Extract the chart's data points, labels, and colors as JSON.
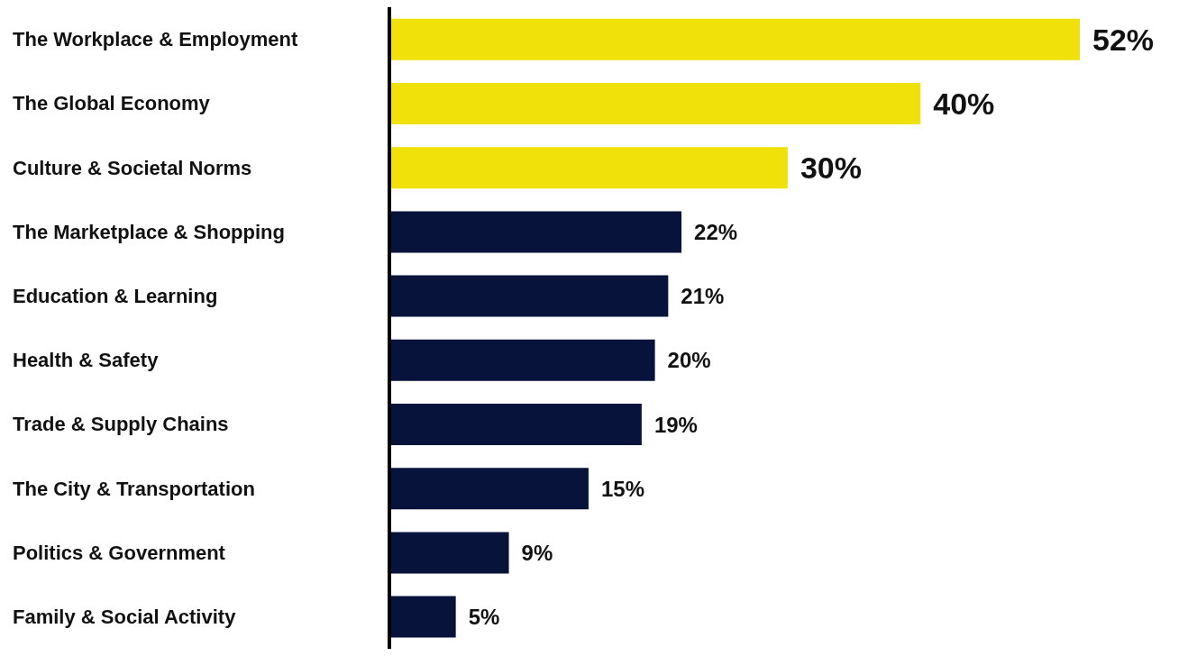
{
  "chart_data": {
    "type": "bar",
    "orientation": "horizontal",
    "categories": [
      "The Workplace & Employment",
      "The Global Economy",
      "Culture & Societal Norms",
      "The Marketplace & Shopping",
      "Education & Learning",
      "Health & Safety",
      "Trade & Supply Chains",
      "The City & Transportation",
      "Politics & Government",
      "Family & Social Activity"
    ],
    "values": [
      52,
      40,
      30,
      22,
      21,
      20,
      19,
      15,
      9,
      5
    ],
    "value_labels": [
      "52%",
      "40%",
      "30%",
      "22%",
      "21%",
      "20%",
      "19%",
      "15%",
      "9%",
      "5%"
    ],
    "colors": [
      "#f0e10a",
      "#f0e10a",
      "#f0e10a",
      "#07133a",
      "#07133a",
      "#07133a",
      "#07133a",
      "#07133a",
      "#07133a",
      "#07133a"
    ],
    "legend": false,
    "grid": false
  }
}
